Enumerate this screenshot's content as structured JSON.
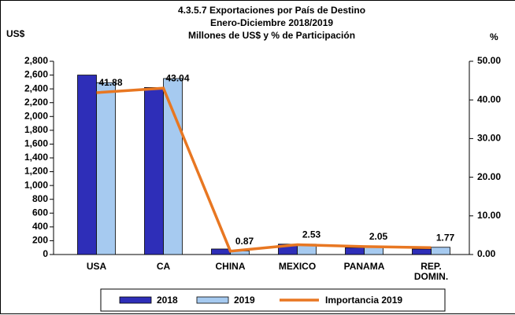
{
  "chart_data": {
    "type": "bar",
    "title": [
      "4.3.5.7 Exportaciones por País de Destino",
      "Enero-Diciembre 2018/2019",
      "Millones de US$ y % de Participación"
    ],
    "ylabel": "US$",
    "y2label": "%",
    "categories": [
      "USA",
      "CA",
      "CHINA",
      "MEXICO",
      "PANAMA",
      "REP. DOMIN."
    ],
    "series": [
      {
        "name": "2018",
        "color": "#2e2eb8",
        "values": [
          2600,
          2420,
          80,
          150,
          100,
          80
        ]
      },
      {
        "name": "2019",
        "color": "#a6caf0",
        "values": [
          2490,
          2550,
          52,
          150,
          122,
          105
        ]
      },
      {
        "name": "Importancia 2019",
        "color": "#e87722",
        "type": "line",
        "axis": "y2",
        "values": [
          41.88,
          43.04,
          0.87,
          2.53,
          2.05,
          1.77
        ]
      }
    ],
    "ylim": [
      0,
      2800
    ],
    "yticks": [
      0,
      200,
      {
        "value": 400,
        "label": "400"
      },
      600,
      800,
      {
        "value": 1000,
        "label": "1,000"
      },
      {
        "value": 1200,
        "label": "1,200"
      },
      {
        "value": 1400,
        "label": "1,400"
      },
      {
        "value": 1600,
        "label": "1,600"
      },
      {
        "value": 1800,
        "label": "1,800"
      },
      {
        "value": 2000,
        "label": "2,000"
      },
      {
        "value": 2200,
        "label": "2,200"
      },
      {
        "value": 2400,
        "label": "2,400"
      },
      {
        "value": 2600,
        "label": "2,600"
      },
      {
        "value": 2800,
        "label": "2,800"
      }
    ],
    "y2lim": [
      0,
      50
    ],
    "y2ticks": [
      {
        "value": 0,
        "label": "0.00"
      },
      {
        "value": 10,
        "label": "10.00"
      },
      {
        "value": 20,
        "label": "20.00"
      },
      {
        "value": 30,
        "label": "30.00"
      },
      {
        "value": 40,
        "label": "40.00"
      },
      {
        "value": 50,
        "label": "50.00"
      }
    ],
    "legend": "bottom"
  }
}
